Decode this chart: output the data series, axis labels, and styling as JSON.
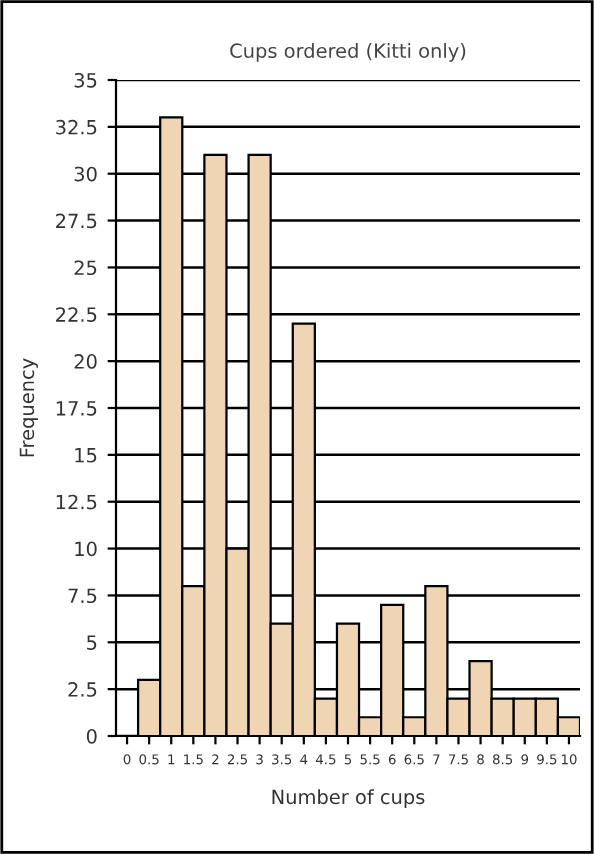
{
  "chart_data": {
    "type": "bar",
    "title": "Cups ordered (Kitti only)",
    "xlabel": "Number of cups",
    "ylabel": "Frequency",
    "categories": [
      "0",
      "0.5",
      "1",
      "1.5",
      "2",
      "2.5",
      "3",
      "3.5",
      "4",
      "4.5",
      "5",
      "5.5",
      "6",
      "6.5",
      "7",
      "7.5",
      "8",
      "8.5",
      "9",
      "9.5",
      "10"
    ],
    "values": [
      0,
      3,
      33,
      8,
      31,
      10,
      31,
      6,
      22,
      2,
      6,
      1,
      7,
      1,
      8,
      2,
      4,
      2,
      2,
      2,
      1
    ],
    "color": "#efd5b3",
    "ylim": [
      0,
      35
    ],
    "yticks": [
      0,
      2.5,
      5,
      7.5,
      10,
      12.5,
      15,
      17.5,
      20,
      22.5,
      25,
      27.5,
      30,
      32.5,
      35
    ],
    "grid": "y"
  }
}
